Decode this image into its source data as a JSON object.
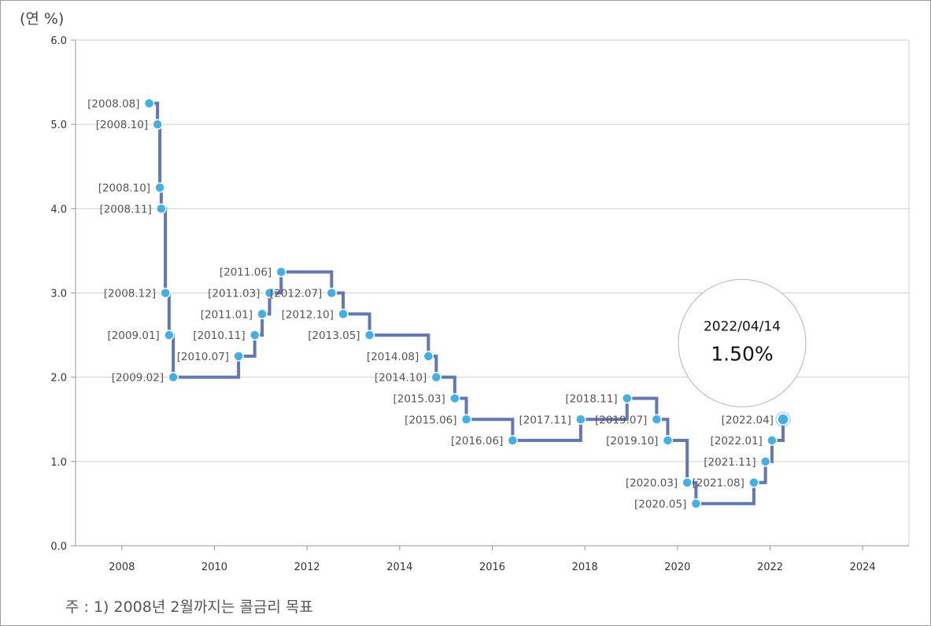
{
  "unit_label": "(연 %)",
  "footnote": "주 : 1) 2008년 2월까지는 콜금리 목표",
  "tooltip": {
    "date": "2022/04/14",
    "value": "1.50%"
  },
  "colors": {
    "line": "#6277b8",
    "point": "#3fb1e8",
    "grid": "#cfcfcf",
    "axis": "#9a9a9a"
  },
  "chart_data": {
    "type": "line",
    "step": true,
    "title": "",
    "xlabel": "",
    "ylabel": "(연 %)",
    "xlim": [
      2007.0,
      2025.0
    ],
    "ylim": [
      0,
      6
    ],
    "x_ticks": [
      2008,
      2010,
      2012,
      2014,
      2016,
      2018,
      2020,
      2022,
      2024
    ],
    "y_ticks": [
      0,
      1,
      2,
      3,
      4,
      5,
      6
    ],
    "y_tick_labels": [
      "0.0",
      "1.0",
      "2.0",
      "3.0",
      "4.0",
      "5.0",
      "6.0"
    ],
    "grid": "horizontal",
    "points": [
      {
        "label": "[2008.08]",
        "x": 2008.59,
        "y": 5.25
      },
      {
        "label": "[2008.10]",
        "x": 2008.77,
        "y": 5.0
      },
      {
        "label": "[2008.10]",
        "x": 2008.82,
        "y": 4.25
      },
      {
        "label": "[2008.11]",
        "x": 2008.85,
        "y": 4.0
      },
      {
        "label": "[2008.12]",
        "x": 2008.94,
        "y": 3.0
      },
      {
        "label": "[2009.01]",
        "x": 2009.02,
        "y": 2.5
      },
      {
        "label": "[2009.02]",
        "x": 2009.11,
        "y": 2.0
      },
      {
        "label": "[2010.07]",
        "x": 2010.52,
        "y": 2.25
      },
      {
        "label": "[2010.11]",
        "x": 2010.87,
        "y": 2.5
      },
      {
        "label": "[2011.01]",
        "x": 2011.03,
        "y": 2.75
      },
      {
        "label": "[2011.03]",
        "x": 2011.19,
        "y": 3.0
      },
      {
        "label": "[2011.06]",
        "x": 2011.44,
        "y": 3.25
      },
      {
        "label": "[2012.07]",
        "x": 2012.53,
        "y": 3.0
      },
      {
        "label": "[2012.10]",
        "x": 2012.78,
        "y": 2.75
      },
      {
        "label": "[2013.05]",
        "x": 2013.35,
        "y": 2.5
      },
      {
        "label": "[2014.08]",
        "x": 2014.62,
        "y": 2.25
      },
      {
        "label": "[2014.10]",
        "x": 2014.79,
        "y": 2.0
      },
      {
        "label": "[2015.03]",
        "x": 2015.19,
        "y": 1.75
      },
      {
        "label": "[2015.06]",
        "x": 2015.44,
        "y": 1.5
      },
      {
        "label": "[2016.06]",
        "x": 2016.44,
        "y": 1.25
      },
      {
        "label": "[2017.11]",
        "x": 2017.91,
        "y": 1.5
      },
      {
        "label": "[2018.11]",
        "x": 2018.91,
        "y": 1.75
      },
      {
        "label": "[2019.07]",
        "x": 2019.55,
        "y": 1.5
      },
      {
        "label": "[2019.10]",
        "x": 2019.79,
        "y": 1.25
      },
      {
        "label": "[2020.03]",
        "x": 2020.21,
        "y": 0.75
      },
      {
        "label": "[2020.05]",
        "x": 2020.4,
        "y": 0.5
      },
      {
        "label": "[2021.08]",
        "x": 2021.65,
        "y": 0.75
      },
      {
        "label": "[2021.11]",
        "x": 2021.9,
        "y": 1.0
      },
      {
        "label": "[2022.01]",
        "x": 2022.04,
        "y": 1.25
      },
      {
        "label": "[2022.04]",
        "x": 2022.28,
        "y": 1.5
      }
    ]
  }
}
